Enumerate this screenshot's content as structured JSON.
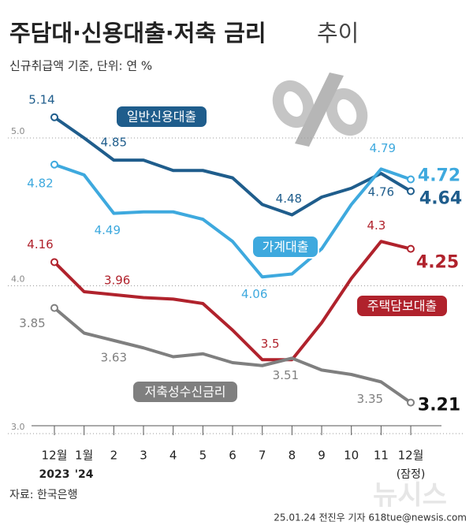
{
  "chart_data": {
    "type": "line",
    "title": "주담대·신용대출·저축 금리",
    "title_suffix": "추이",
    "subtitle": "신규취급액 기준, 단위: 연 %",
    "source": "자료: 한국은행",
    "credit": "25.01.24 전진우 기자 618tue@newsis.com",
    "watermark": "뉴시스",
    "categories": [
      "12월",
      "1월",
      "2",
      "3",
      "4",
      "5",
      "6",
      "7",
      "8",
      "9",
      "10",
      "11",
      "12월"
    ],
    "sublabels": [
      "2023",
      "'24",
      null,
      null,
      null,
      null,
      null,
      null,
      null,
      null,
      null,
      null,
      "(잠정)"
    ],
    "ylim": [
      3.0,
      5.4
    ],
    "yticks": [
      {
        "value": 3,
        "label": "3.0"
      },
      {
        "value": 4,
        "label": "4.0"
      },
      {
        "value": 5,
        "label": "5.0"
      }
    ],
    "grid": true,
    "series": [
      {
        "name": "일반신용대출",
        "color": "#1f5d8c",
        "values": [
          5.14,
          5.0,
          4.85,
          4.85,
          4.78,
          4.78,
          4.73,
          4.55,
          4.48,
          4.6,
          4.66,
          4.76,
          4.64
        ]
      },
      {
        "name": "가계대출",
        "color": "#3ea9de",
        "values": [
          4.82,
          4.75,
          4.49,
          4.5,
          4.5,
          4.45,
          4.3,
          4.06,
          4.08,
          4.25,
          4.55,
          4.79,
          4.72
        ]
      },
      {
        "name": "주택담보대출",
        "color": "#b0222c",
        "values": [
          4.16,
          3.96,
          3.94,
          3.92,
          3.91,
          3.88,
          3.7,
          3.5,
          3.5,
          3.75,
          4.05,
          4.3,
          4.25
        ]
      },
      {
        "name": "저축성수신금리",
        "color": "#7f7f7f",
        "values": [
          3.85,
          3.68,
          3.63,
          3.58,
          3.52,
          3.54,
          3.48,
          3.46,
          3.51,
          3.43,
          3.4,
          3.35,
          3.21
        ]
      }
    ]
  }
}
